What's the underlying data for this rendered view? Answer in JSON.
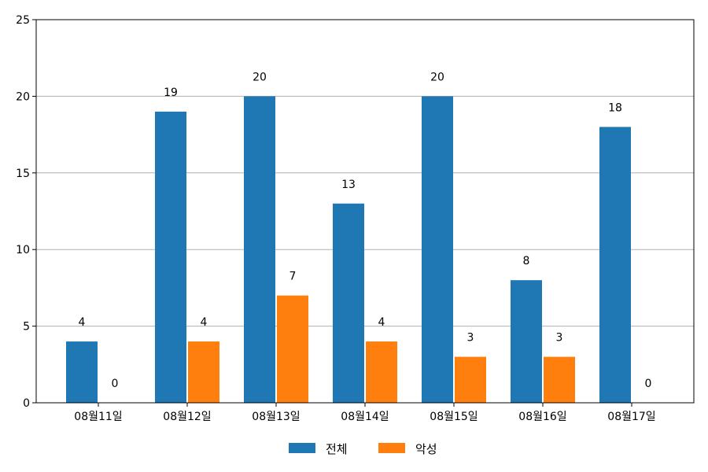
{
  "chart_data": {
    "type": "bar",
    "categories": [
      "08월11일",
      "08월12일",
      "08월13일",
      "08월14일",
      "08월15일",
      "08월16일",
      "08월17일"
    ],
    "series": [
      {
        "name": "전체",
        "values": [
          4,
          19,
          20,
          13,
          20,
          8,
          18
        ],
        "color": "#1f77b4"
      },
      {
        "name": "악성",
        "values": [
          0,
          4,
          7,
          4,
          3,
          3,
          0
        ],
        "color": "#ff7f0e"
      }
    ],
    "title": "",
    "xlabel": "",
    "ylabel": "",
    "ylim": [
      0,
      25
    ],
    "yticks": [
      0,
      5,
      10,
      15,
      20,
      25
    ],
    "grid": "y",
    "legend": "bottom-center"
  }
}
